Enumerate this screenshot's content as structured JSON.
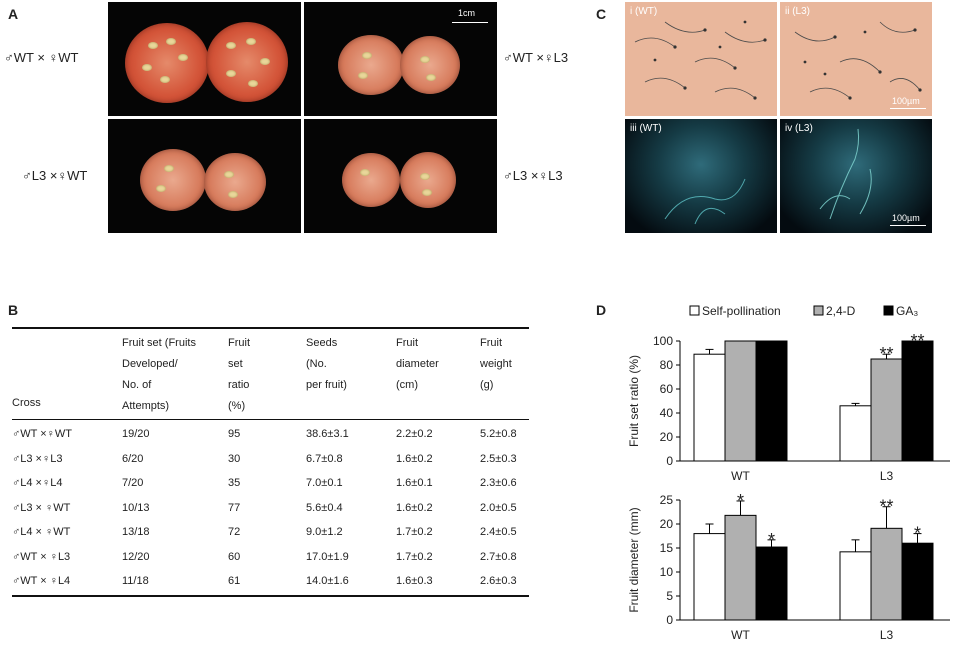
{
  "panels": {
    "a": "A",
    "b": "B",
    "c": "C",
    "d": "D"
  },
  "panelA": {
    "scale_label": "1cm",
    "labels": [
      "♂WT × ♀WT",
      "♂WT ×♀L3",
      "♂L3 ×♀WT",
      "♂L3 ×♀L3"
    ]
  },
  "panelC": {
    "labels": [
      "i (WT)",
      "ii (L3)",
      "iii (WT)",
      "iv (L3)"
    ],
    "scale_label": "100µm"
  },
  "table": {
    "headers": [
      [
        "Cross"
      ],
      [
        "Fruit  set (Fruits",
        "Developed/",
        "No. of",
        "Attempts)"
      ],
      [
        "Fruit",
        "set",
        "ratio",
        "(%)"
      ],
      [
        "Seeds",
        "(No.",
        "per fruit)"
      ],
      [
        "Fruit",
        "diameter",
        "(cm)"
      ],
      [
        "Fruit",
        "weight",
        "(g)"
      ]
    ],
    "rows": [
      [
        "♂WT ×♀WT",
        "19/20",
        "95",
        "38.6±3.1",
        "2.2±0.2",
        "5.2±0.8"
      ],
      [
        "♂L3 ×♀L3",
        "6/20",
        "30",
        "6.7±0.8",
        "1.6±0.2",
        "2.5±0.3"
      ],
      [
        "♂L4 ×♀L4",
        "7/20",
        "35",
        "7.0±0.1",
        "1.6±0.1",
        "2.3±0.6"
      ],
      [
        "♂L3 × ♀WT",
        "10/13",
        "77",
        "5.6±0.4",
        "1.6±0.2",
        "2.0±0.5"
      ],
      [
        "♂L4 × ♀WT",
        "13/18",
        "72",
        "9.0±1.2",
        "1.7±0.2",
        "2.4±0.5"
      ],
      [
        "♂WT × ♀L3",
        "12/20",
        "60",
        "17.0±1.9",
        "1.7±0.2",
        "2.7±0.8"
      ],
      [
        "♂WT × ♀L4",
        "11/18",
        "61",
        "14.0±1.6",
        "1.6±0.3",
        "2.6±0.3"
      ]
    ]
  },
  "legend": [
    "Self-pollination",
    "2,4-D",
    "GA₃"
  ],
  "colors": {
    "self": "#ffffff",
    "d24": "#b0b0b0",
    "ga3": "#000000"
  },
  "chart_data": [
    {
      "type": "bar",
      "categories": [
        "WT",
        "L3"
      ],
      "series": [
        {
          "name": "Self-pollination",
          "values": [
            89,
            46
          ],
          "errors": [
            4,
            2
          ],
          "marks": [
            "",
            ""
          ]
        },
        {
          "name": "2,4-D",
          "values": [
            100,
            85
          ],
          "errors": [
            0,
            4
          ],
          "marks": [
            "",
            "**"
          ]
        },
        {
          "name": "GA₃",
          "values": [
            100,
            100
          ],
          "errors": [
            0,
            0
          ],
          "marks": [
            "",
            "**"
          ]
        }
      ],
      "ylabel": "Fruit set ratio (%)",
      "ylim": [
        0,
        100
      ],
      "yticks": [
        0,
        20,
        40,
        60,
        80,
        100
      ]
    },
    {
      "type": "bar",
      "categories": [
        "WT",
        "L3"
      ],
      "series": [
        {
          "name": "Self-pollination",
          "values": [
            18,
            14.2
          ],
          "errors": [
            2,
            2.5
          ],
          "marks": [
            "",
            ""
          ]
        },
        {
          "name": "2,4-D",
          "values": [
            21.8,
            19.1
          ],
          "errors": [
            3,
            4.5
          ],
          "marks": [
            "*",
            "**"
          ]
        },
        {
          "name": "GA₃",
          "values": [
            15.2,
            16
          ],
          "errors": [
            1.5,
            2
          ],
          "marks": [
            "*",
            "*"
          ]
        }
      ],
      "ylabel": "Fruit diameter (mm)",
      "ylim": [
        0,
        25
      ],
      "yticks": [
        0,
        5,
        10,
        15,
        20,
        25
      ]
    }
  ]
}
